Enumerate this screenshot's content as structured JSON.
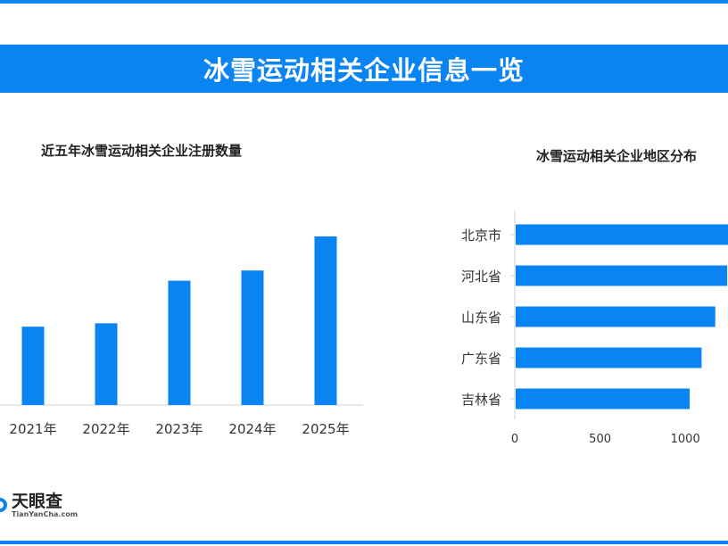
{
  "page": {
    "title": "冰雪运动相关企业信息一览",
    "accent_color": "#0b84f3"
  },
  "logo": {
    "name": "天眼查",
    "sub": "TianYanCha.com",
    "icon": "tianyancha-logo-icon"
  },
  "chart_data": [
    {
      "type": "bar",
      "orientation": "vertical",
      "title": "近五年冰雪运动相关企业注册数量",
      "categories": [
        "2021年",
        "2022年",
        "2023年",
        "2024年",
        "2025年"
      ],
      "values": [
        46,
        48,
        73,
        79,
        99
      ],
      "ylim": [
        0,
        100
      ],
      "grid": false,
      "color": "#0b84f3"
    },
    {
      "type": "bar",
      "orientation": "horizontal",
      "title": "冰雪运动相关企业地区分布",
      "categories": [
        "北京市",
        "河北省",
        "山东省",
        "广东省",
        "吉林省"
      ],
      "values": [
        1250,
        1240,
        1170,
        1090,
        1020
      ],
      "xlim": [
        0,
        1250
      ],
      "xticks": [
        0,
        500,
        1000
      ],
      "grid": false,
      "color": "#0b84f3"
    }
  ]
}
